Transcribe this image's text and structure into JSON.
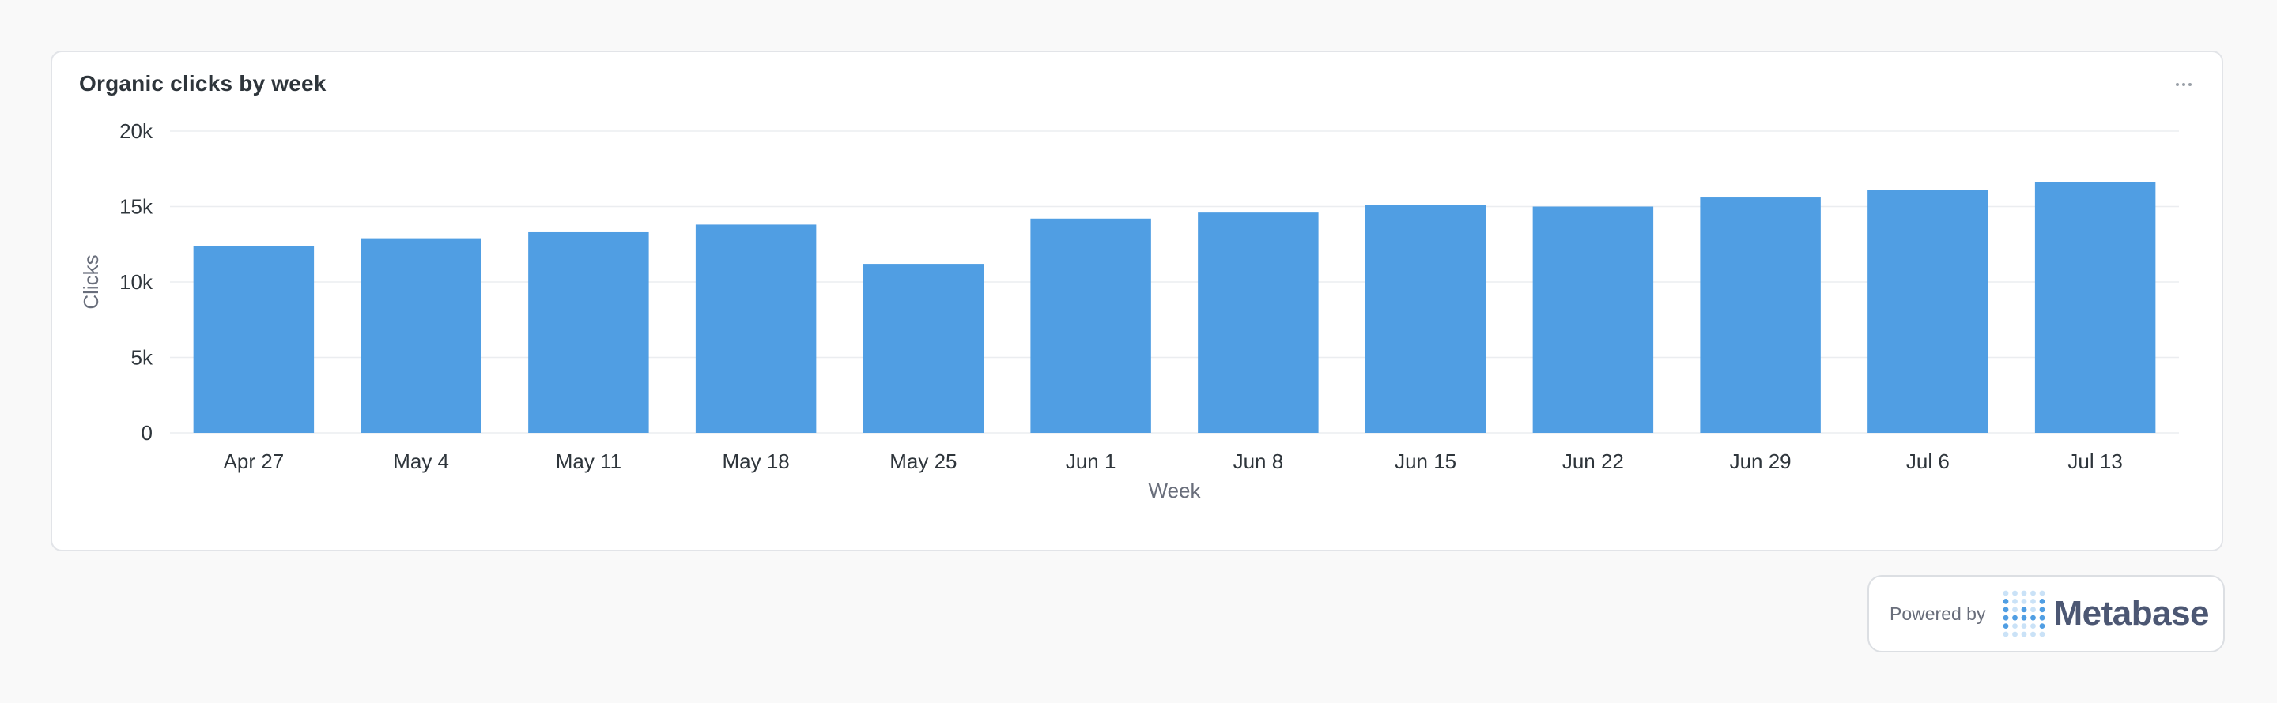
{
  "card": {
    "title": "Organic clicks by week",
    "menu_icon": "ellipsis-icon"
  },
  "colors": {
    "bar": "#509ee3",
    "gridline": "#ebedf0",
    "axis_text": "#2e353b",
    "axis_title": "#696e7b",
    "brand": "#509ee3",
    "brand_text": "#4c5773"
  },
  "chart_data": {
    "type": "bar",
    "title": "Organic clicks by week",
    "xlabel": "Week",
    "ylabel": "Clicks",
    "categories": [
      "Apr 27",
      "May 4",
      "May 11",
      "May 18",
      "May 25",
      "Jun 1",
      "Jun 8",
      "Jun 15",
      "Jun 22",
      "Jun 29",
      "Jul 6",
      "Jul 13"
    ],
    "series": [
      {
        "values": [
          12400,
          12900,
          13300,
          13800,
          11200,
          14200,
          14600,
          15100,
          15000,
          15600,
          16100,
          16600
        ]
      }
    ],
    "ylim": [
      0,
      20000
    ],
    "yticks": [
      0,
      5000,
      10000,
      15000,
      20000
    ],
    "ytick_labels": [
      "0",
      "5k",
      "10k",
      "15k",
      "20k"
    ],
    "grid": true,
    "legend": "none"
  },
  "footer": {
    "powered_by": "Powered by",
    "brand_name": "Metabase",
    "logo_icon": "metabase-logo-icon"
  }
}
